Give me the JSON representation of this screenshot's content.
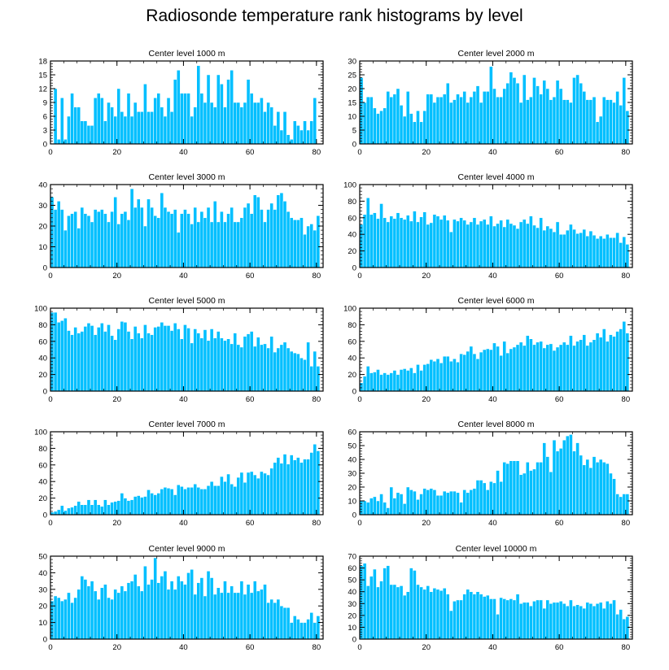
{
  "title": "Radiosonde temperature rank histograms by level",
  "colors": {
    "bar": "#00bfff",
    "bar_edge": "#ffffff",
    "axis": "#000000"
  },
  "chart_data": [
    {
      "type": "bar",
      "title": "Center level 1000 m",
      "xlim": [
        0,
        82
      ],
      "ylim": [
        0,
        18
      ],
      "xticks": [
        0,
        20,
        40,
        60,
        80
      ],
      "yticks": [
        0,
        3,
        6,
        9,
        12,
        15,
        18
      ],
      "values": [
        0,
        12,
        1,
        10,
        1,
        6,
        11,
        8,
        8,
        5,
        5,
        4,
        4,
        10,
        11,
        10,
        5,
        9,
        8,
        6,
        12,
        7,
        6,
        11,
        6,
        9,
        7,
        7,
        13,
        7,
        7,
        10,
        11,
        8,
        6,
        10,
        7,
        14,
        16,
        11,
        11,
        11,
        6,
        8,
        17,
        11,
        9,
        15,
        9,
        8,
        15,
        13,
        8,
        14,
        16,
        9,
        9,
        8,
        9,
        14,
        11,
        9,
        9,
        10,
        7,
        9,
        8,
        4,
        7,
        3,
        7,
        2,
        1,
        5,
        4,
        3,
        5,
        3,
        5,
        10,
        0
      ]
    },
    {
      "type": "bar",
      "title": "Center level 2000 m",
      "xlim": [
        0,
        82
      ],
      "ylim": [
        0,
        30
      ],
      "xticks": [
        0,
        20,
        40,
        60,
        80
      ],
      "yticks": [
        0,
        5,
        10,
        15,
        20,
        25,
        30
      ],
      "values": [
        24,
        15,
        17,
        17,
        13,
        11,
        12,
        13,
        19,
        17,
        18,
        20,
        14,
        10,
        19,
        11,
        8,
        12,
        8,
        12,
        18,
        18,
        15,
        17,
        17,
        18,
        22,
        15,
        16,
        18,
        17,
        19,
        15,
        17,
        19,
        21,
        15,
        19,
        19,
        28,
        20,
        17,
        17,
        20,
        22,
        26,
        24,
        22,
        15,
        25,
        16,
        17,
        24,
        21,
        18,
        23,
        20,
        16,
        17,
        23,
        20,
        16,
        16,
        15,
        24,
        25,
        22,
        19,
        16,
        16,
        17,
        8,
        10,
        17,
        16,
        16,
        15,
        19,
        14,
        24,
        12
      ]
    },
    {
      "type": "bar",
      "title": "Center level 3000 m",
      "xlim": [
        0,
        82
      ],
      "ylim": [
        0,
        40
      ],
      "xticks": [
        0,
        20,
        40,
        60,
        80
      ],
      "yticks": [
        0,
        10,
        20,
        30,
        40
      ],
      "values": [
        34,
        28,
        32,
        28,
        18,
        25,
        26,
        27,
        19,
        29,
        26,
        25,
        22,
        28,
        27,
        28,
        26,
        22,
        27,
        34,
        21,
        26,
        27,
        23,
        38,
        29,
        33,
        29,
        20,
        33,
        29,
        25,
        24,
        36,
        29,
        27,
        26,
        28,
        17,
        26,
        28,
        26,
        21,
        29,
        22,
        27,
        24,
        29,
        22,
        32,
        22,
        27,
        22,
        26,
        29,
        22,
        22,
        24,
        29,
        31,
        26,
        35,
        34,
        28,
        22,
        28,
        31,
        28,
        35,
        36,
        32,
        27,
        24,
        23,
        23,
        24,
        16,
        20,
        21,
        18,
        25
      ]
    },
    {
      "type": "bar",
      "title": "Center level 4000 m",
      "xlim": [
        0,
        82
      ],
      "ylim": [
        0,
        100
      ],
      "xticks": [
        0,
        20,
        40,
        60,
        80
      ],
      "yticks": [
        0,
        20,
        40,
        60,
        80,
        100
      ],
      "values": [
        52,
        64,
        84,
        64,
        66,
        59,
        77,
        60,
        55,
        62,
        59,
        66,
        60,
        58,
        63,
        56,
        68,
        55,
        61,
        67,
        52,
        54,
        64,
        62,
        58,
        63,
        57,
        43,
        58,
        56,
        60,
        57,
        52,
        55,
        60,
        52,
        56,
        58,
        52,
        62,
        50,
        53,
        57,
        49,
        58,
        53,
        51,
        47,
        55,
        58,
        53,
        62,
        51,
        48,
        60,
        45,
        50,
        47,
        43,
        55,
        40,
        40,
        45,
        52,
        46,
        41,
        42,
        46,
        38,
        44,
        39,
        35,
        38,
        35,
        40,
        36,
        36,
        42,
        30,
        37,
        28
      ]
    },
    {
      "type": "bar",
      "title": "Center level 5000 m",
      "xlim": [
        0,
        82
      ],
      "ylim": [
        0,
        100
      ],
      "xticks": [
        0,
        20,
        40,
        60,
        80
      ],
      "yticks": [
        0,
        20,
        40,
        60,
        80,
        100
      ],
      "values": [
        95,
        95,
        83,
        85,
        88,
        73,
        68,
        77,
        70,
        72,
        78,
        82,
        79,
        68,
        77,
        82,
        72,
        80,
        67,
        62,
        75,
        84,
        83,
        72,
        63,
        78,
        70,
        64,
        80,
        70,
        68,
        77,
        78,
        83,
        79,
        79,
        73,
        82,
        75,
        63,
        80,
        76,
        58,
        75,
        70,
        64,
        74,
        61,
        75,
        64,
        72,
        64,
        61,
        63,
        57,
        70,
        56,
        53,
        66,
        69,
        72,
        54,
        65,
        56,
        57,
        52,
        66,
        47,
        52,
        56,
        59,
        52,
        48,
        46,
        45,
        40,
        38,
        59,
        30,
        48,
        30
      ]
    },
    {
      "type": "bar",
      "title": "Center level 6000 m",
      "xlim": [
        0,
        82
      ],
      "ylim": [
        0,
        100
      ],
      "xticks": [
        0,
        20,
        40,
        60,
        80
      ],
      "yticks": [
        0,
        20,
        40,
        60,
        80,
        100
      ],
      "values": [
        10,
        18,
        30,
        22,
        23,
        26,
        20,
        22,
        20,
        22,
        25,
        20,
        26,
        27,
        25,
        28,
        22,
        32,
        25,
        32,
        33,
        38,
        36,
        39,
        34,
        42,
        42,
        36,
        39,
        35,
        45,
        44,
        48,
        54,
        45,
        39,
        47,
        50,
        51,
        50,
        58,
        54,
        43,
        60,
        46,
        51,
        53,
        56,
        59,
        55,
        67,
        63,
        56,
        59,
        60,
        52,
        56,
        57,
        49,
        53,
        56,
        59,
        56,
        67,
        55,
        60,
        62,
        68,
        55,
        59,
        62,
        70,
        65,
        75,
        60,
        68,
        66,
        72,
        75,
        84,
        70
      ]
    },
    {
      "type": "bar",
      "title": "Center level 7000 m",
      "xlim": [
        0,
        82
      ],
      "ylim": [
        0,
        100
      ],
      "xticks": [
        0,
        20,
        40,
        60,
        80
      ],
      "yticks": [
        0,
        20,
        40,
        60,
        80,
        100
      ],
      "values": [
        3,
        4,
        6,
        11,
        5,
        8,
        9,
        11,
        16,
        12,
        12,
        18,
        12,
        18,
        12,
        10,
        18,
        12,
        15,
        16,
        17,
        26,
        20,
        17,
        18,
        22,
        23,
        21,
        22,
        30,
        26,
        24,
        26,
        31,
        33,
        32,
        31,
        24,
        36,
        34,
        31,
        33,
        33,
        37,
        33,
        31,
        31,
        35,
        40,
        35,
        35,
        46,
        40,
        49,
        37,
        34,
        45,
        51,
        39,
        51,
        52,
        48,
        44,
        52,
        50,
        48,
        56,
        63,
        69,
        62,
        73,
        61,
        72,
        66,
        69,
        63,
        67,
        67,
        75,
        85,
        77
      ]
    },
    {
      "type": "bar",
      "title": "Center level 8000 m",
      "xlim": [
        0,
        82
      ],
      "ylim": [
        0,
        60
      ],
      "xticks": [
        0,
        20,
        40,
        60,
        80
      ],
      "yticks": [
        0,
        10,
        20,
        30,
        40,
        50,
        60
      ],
      "values": [
        10,
        10,
        9,
        12,
        13,
        10,
        15,
        9,
        5,
        20,
        12,
        16,
        15,
        8,
        20,
        18,
        17,
        11,
        15,
        19,
        18,
        19,
        18,
        14,
        14,
        17,
        16,
        17,
        17,
        16,
        9,
        18,
        16,
        18,
        19,
        25,
        25,
        23,
        18,
        24,
        23,
        32,
        24,
        38,
        37,
        39,
        39,
        39,
        29,
        30,
        38,
        32,
        33,
        38,
        38,
        52,
        42,
        31,
        54,
        46,
        48,
        54,
        57,
        58,
        46,
        52,
        43,
        36,
        40,
        34,
        42,
        38,
        40,
        38,
        37,
        30,
        26,
        15,
        13,
        15,
        15
      ]
    },
    {
      "type": "bar",
      "title": "Center level 9000 m",
      "xlim": [
        0,
        82
      ],
      "ylim": [
        0,
        50
      ],
      "xticks": [
        0,
        20,
        40,
        60,
        80
      ],
      "yticks": [
        0,
        10,
        20,
        30,
        40,
        50
      ],
      "values": [
        23,
        26,
        25,
        23,
        24,
        28,
        22,
        25,
        30,
        38,
        36,
        32,
        35,
        29,
        24,
        31,
        33,
        25,
        24,
        30,
        28,
        32,
        29,
        34,
        35,
        39,
        32,
        29,
        44,
        33,
        36,
        49,
        34,
        38,
        41,
        30,
        35,
        30,
        38,
        35,
        33,
        40,
        42,
        27,
        34,
        37,
        26,
        41,
        37,
        27,
        31,
        28,
        35,
        28,
        32,
        28,
        28,
        35,
        27,
        33,
        28,
        35,
        29,
        30,
        33,
        22,
        24,
        22,
        24,
        20,
        19,
        19,
        10,
        14,
        12,
        10,
        10,
        12,
        16,
        10,
        14
      ]
    },
    {
      "type": "bar",
      "title": "Center level 10000 m",
      "xlim": [
        0,
        82
      ],
      "ylim": [
        0,
        70
      ],
      "xticks": [
        0,
        20,
        40,
        60,
        80
      ],
      "yticks": [
        0,
        10,
        20,
        30,
        40,
        50,
        60,
        70
      ],
      "values": [
        62,
        64,
        45,
        53,
        59,
        44,
        49,
        60,
        62,
        46,
        46,
        44,
        45,
        37,
        40,
        60,
        58,
        46,
        44,
        42,
        45,
        40,
        43,
        42,
        41,
        43,
        38,
        24,
        32,
        33,
        33,
        38,
        42,
        40,
        38,
        40,
        38,
        36,
        37,
        34,
        34,
        21,
        35,
        34,
        33,
        34,
        33,
        38,
        30,
        31,
        31,
        28,
        32,
        33,
        33,
        26,
        33,
        30,
        31,
        31,
        32,
        30,
        28,
        33,
        28,
        29,
        28,
        26,
        31,
        30,
        28,
        30,
        31,
        26,
        32,
        30,
        33,
        21,
        25,
        17,
        19
      ]
    }
  ]
}
